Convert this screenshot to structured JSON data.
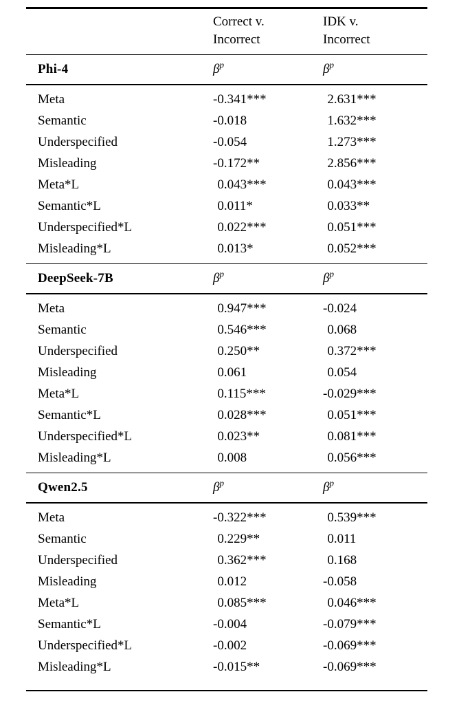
{
  "page": {
    "background": "#ffffff",
    "text_color": "#000000"
  },
  "table": {
    "columns": [
      {
        "line1": "Correct v.",
        "line2": "Incorrect"
      },
      {
        "line1": "IDK v.",
        "line2": "Incorrect"
      }
    ],
    "coef_symbol": {
      "base": "β",
      "sup": "p"
    }
  },
  "sections": [
    {
      "model": "Phi-4",
      "rows": [
        {
          "label": "Meta",
          "correct_v_incorrect": "-0.341***",
          "idk_v_incorrect": "2.631***"
        },
        {
          "label": "Semantic",
          "correct_v_incorrect": "-0.018",
          "idk_v_incorrect": "1.632***"
        },
        {
          "label": "Underspecified",
          "correct_v_incorrect": "-0.054",
          "idk_v_incorrect": "1.273***"
        },
        {
          "label": "Misleading",
          "correct_v_incorrect": "-0.172**",
          "idk_v_incorrect": "2.856***"
        },
        {
          "label": "Meta*L",
          "correct_v_incorrect": "0.043***",
          "idk_v_incorrect": "0.043***"
        },
        {
          "label": "Semantic*L",
          "correct_v_incorrect": "0.011*",
          "idk_v_incorrect": "0.033**"
        },
        {
          "label": "Underspecified*L",
          "correct_v_incorrect": "0.022***",
          "idk_v_incorrect": "0.051***"
        },
        {
          "label": "Misleading*L",
          "correct_v_incorrect": "0.013*",
          "idk_v_incorrect": "0.052***"
        }
      ]
    },
    {
      "model": "DeepSeek-7B",
      "rows": [
        {
          "label": "Meta",
          "correct_v_incorrect": "0.947***",
          "idk_v_incorrect": "-0.024"
        },
        {
          "label": "Semantic",
          "correct_v_incorrect": "0.546***",
          "idk_v_incorrect": "0.068"
        },
        {
          "label": "Underspecified",
          "correct_v_incorrect": "0.250**",
          "idk_v_incorrect": "0.372***"
        },
        {
          "label": "Misleading",
          "correct_v_incorrect": "0.061",
          "idk_v_incorrect": "0.054"
        },
        {
          "label": "Meta*L",
          "correct_v_incorrect": "0.115***",
          "idk_v_incorrect": "-0.029***"
        },
        {
          "label": "Semantic*L",
          "correct_v_incorrect": "0.028***",
          "idk_v_incorrect": "0.051***"
        },
        {
          "label": "Underspecified*L",
          "correct_v_incorrect": "0.023**",
          "idk_v_incorrect": "0.081***"
        },
        {
          "label": "Misleading*L",
          "correct_v_incorrect": "0.008",
          "idk_v_incorrect": "0.056***"
        }
      ]
    },
    {
      "model": "Qwen2.5",
      "rows": [
        {
          "label": "Meta",
          "correct_v_incorrect": "-0.322***",
          "idk_v_incorrect": "0.539***"
        },
        {
          "label": "Semantic",
          "correct_v_incorrect": "0.229**",
          "idk_v_incorrect": "0.011"
        },
        {
          "label": "Underspecified",
          "correct_v_incorrect": "0.362***",
          "idk_v_incorrect": "0.168"
        },
        {
          "label": "Misleading",
          "correct_v_incorrect": "0.012",
          "idk_v_incorrect": "-0.058"
        },
        {
          "label": "Meta*L",
          "correct_v_incorrect": "0.085***",
          "idk_v_incorrect": "0.046***"
        },
        {
          "label": "Semantic*L",
          "correct_v_incorrect": "-0.004",
          "idk_v_incorrect": "-0.079***"
        },
        {
          "label": "Underspecified*L",
          "correct_v_incorrect": "-0.002",
          "idk_v_incorrect": "-0.069***"
        },
        {
          "label": "Misleading*L",
          "correct_v_incorrect": "-0.015**",
          "idk_v_incorrect": "-0.069***"
        }
      ]
    }
  ]
}
